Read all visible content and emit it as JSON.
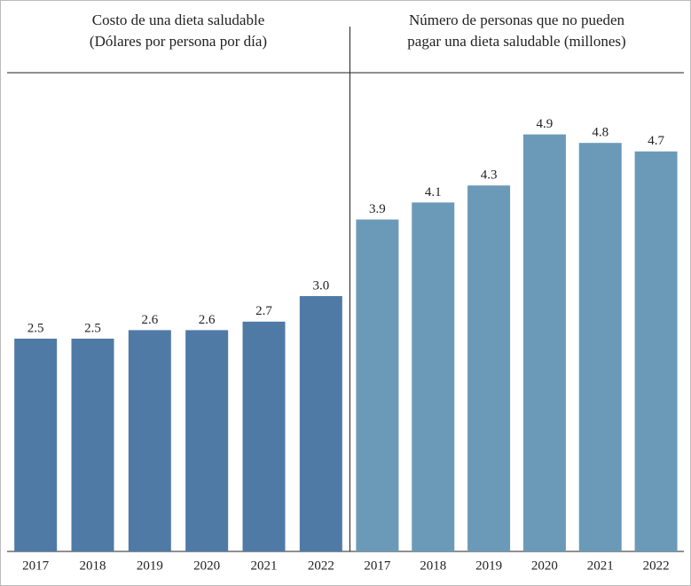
{
  "chart_data": [
    {
      "type": "bar",
      "title": [
        "Costo de una dieta saludable",
        "(Dólares por persona por día)"
      ],
      "categories": [
        "2017",
        "2018",
        "2019",
        "2020",
        "2021",
        "2022"
      ],
      "values": [
        2.5,
        2.5,
        2.6,
        2.6,
        2.7,
        3.0
      ],
      "value_labels": [
        "2.5",
        "2.5",
        "2.6",
        "2.6",
        "2.7",
        "3.0"
      ],
      "color": "#4f7aa6"
    },
    {
      "type": "bar",
      "title": [
        "Número de personas que no pueden",
        "pagar una dieta saludable (millones)"
      ],
      "categories": [
        "2017",
        "2018",
        "2019",
        "2020",
        "2021",
        "2022"
      ],
      "values": [
        3.9,
        4.1,
        4.3,
        4.9,
        4.8,
        4.7
      ],
      "value_labels": [
        "3.9",
        "4.1",
        "4.3",
        "4.9",
        "4.8",
        "4.7"
      ],
      "color": "#6b9ab8"
    }
  ]
}
